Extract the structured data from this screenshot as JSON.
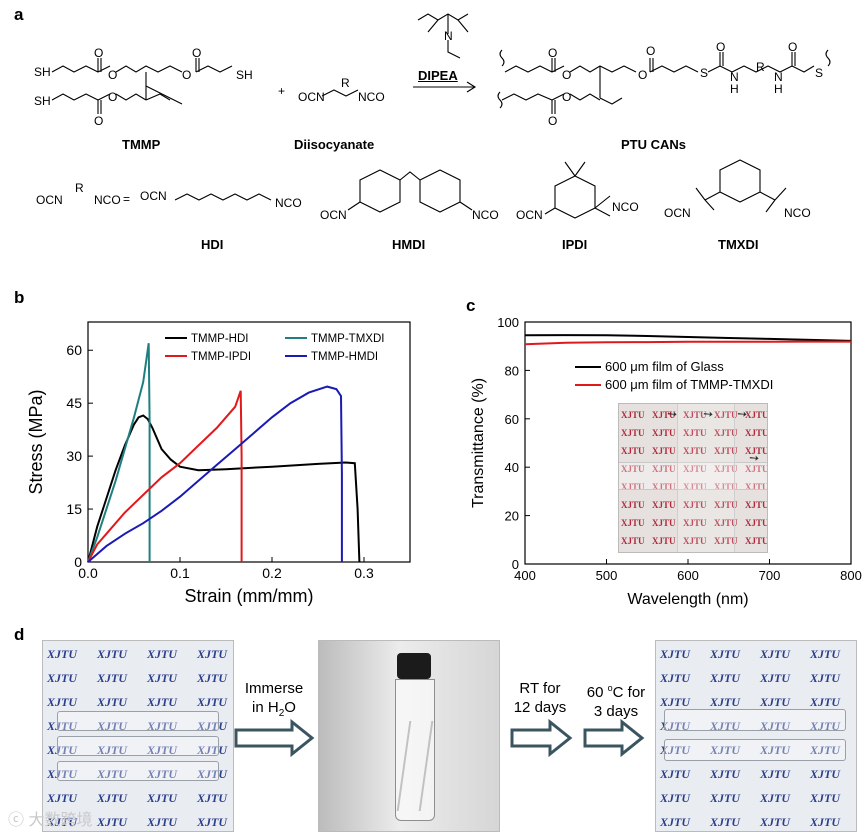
{
  "panels": {
    "a": "a",
    "b": "b",
    "c": "c",
    "d": "d"
  },
  "panel_a": {
    "reagent": "DIPEA",
    "plus": "+",
    "equals": "=",
    "names": {
      "tmmp": "TMMP",
      "diisocyanate": "Diisocyanate",
      "product": "PTU CANs",
      "hdi": "HDI",
      "hmdi": "HMDI",
      "ipdi": "IPDI",
      "tmxdi": "TMXDI"
    },
    "groups": {
      "sh": "SH",
      "ocn": "OCN",
      "nco": "NCO",
      "r": "R",
      "o": "O",
      "s": "S",
      "n": "N",
      "h": "H"
    }
  },
  "chart_data": [
    {
      "type": "line",
      "panel": "b",
      "xlabel": "Strain (mm/mm)",
      "ylabel": "Stress (MPa)",
      "xlim": [
        0,
        0.35
      ],
      "ylim": [
        0,
        68
      ],
      "xticks": [
        "0.0",
        "0.1",
        "0.2",
        "0.3"
      ],
      "yticks": [
        "0",
        "15",
        "30",
        "45",
        "60"
      ],
      "legend": "top",
      "series": [
        {
          "name": "TMMP-HDI",
          "color": "#000000",
          "x": [
            0,
            0.01,
            0.02,
            0.03,
            0.04,
            0.05,
            0.055,
            0.06,
            0.065,
            0.07,
            0.075,
            0.08,
            0.09,
            0.1,
            0.12,
            0.15,
            0.2,
            0.25,
            0.28,
            0.29,
            0.293,
            0.295
          ],
          "y": [
            0,
            10,
            18,
            26,
            33,
            39,
            41,
            41.5,
            40.5,
            38,
            35,
            32,
            29,
            27,
            26,
            26.3,
            27,
            27.8,
            28.2,
            28,
            15,
            0
          ]
        },
        {
          "name": "TMMP-TMXDI",
          "color": "#1f7f80",
          "x": [
            0,
            0.01,
            0.02,
            0.03,
            0.04,
            0.05,
            0.06,
            0.066,
            0.067,
            0.067
          ],
          "y": [
            0,
            7,
            15,
            23,
            32,
            41,
            51,
            62,
            40,
            0
          ]
        },
        {
          "name": "TMMP-IPDI",
          "color": "#e0191b",
          "x": [
            0,
            0.01,
            0.02,
            0.04,
            0.06,
            0.08,
            0.1,
            0.12,
            0.14,
            0.16,
            0.166,
            0.167,
            0.167
          ],
          "y": [
            0,
            5,
            8,
            14,
            19,
            24,
            28,
            33,
            38,
            44,
            48.5,
            30,
            0
          ]
        },
        {
          "name": "TMMP-HMDI",
          "color": "#1a1ab5",
          "x": [
            0,
            0.02,
            0.04,
            0.06,
            0.08,
            0.1,
            0.12,
            0.14,
            0.16,
            0.18,
            0.2,
            0.22,
            0.24,
            0.26,
            0.27,
            0.275,
            0.276,
            0.276
          ],
          "y": [
            0,
            4.5,
            8,
            11,
            14.5,
            18.5,
            23,
            27.5,
            32,
            36.5,
            41,
            45,
            48,
            49.7,
            49,
            47,
            25,
            0
          ]
        }
      ]
    },
    {
      "type": "line",
      "panel": "c",
      "xlabel": "Wavelength (nm)",
      "ylabel": "Transmittance (%)",
      "xlim": [
        400,
        800
      ],
      "ylim": [
        0,
        100
      ],
      "xticks": [
        "400",
        "500",
        "600",
        "700",
        "800"
      ],
      "yticks": [
        "0",
        "20",
        "40",
        "60",
        "80",
        "100"
      ],
      "legend": "top-right",
      "series": [
        {
          "name": "600 μm film of Glass",
          "color": "#000000",
          "x": [
            400,
            450,
            500,
            550,
            600,
            650,
            700,
            750,
            800
          ],
          "y": [
            94.5,
            94.6,
            94.5,
            94.2,
            93.8,
            93.4,
            93.0,
            92.6,
            92.2
          ]
        },
        {
          "name": "600 μm film of TMMP-TMXDI",
          "color": "#e0191b",
          "x": [
            400,
            450,
            500,
            550,
            600,
            650,
            700,
            750,
            800
          ],
          "y": [
            90.8,
            91.4,
            91.6,
            91.7,
            91.8,
            91.8,
            91.8,
            91.9,
            91.9
          ]
        }
      ]
    }
  ],
  "panel_c_inset": {
    "watermark_text": "XJTU"
  },
  "panel_d": {
    "photo_text": "XJTU",
    "step1_line1": "Immerse",
    "step1_line2": "in H",
    "step1_sub": "2",
    "step1_tail": "O",
    "step2_line1": "RT for",
    "step2_line2": "12 days",
    "step3_line1": "60 ",
    "step3_sup": "o",
    "step3_tail": "C for",
    "step3_line2": "3 days"
  },
  "watermark": "ⓒ 大数跨境"
}
